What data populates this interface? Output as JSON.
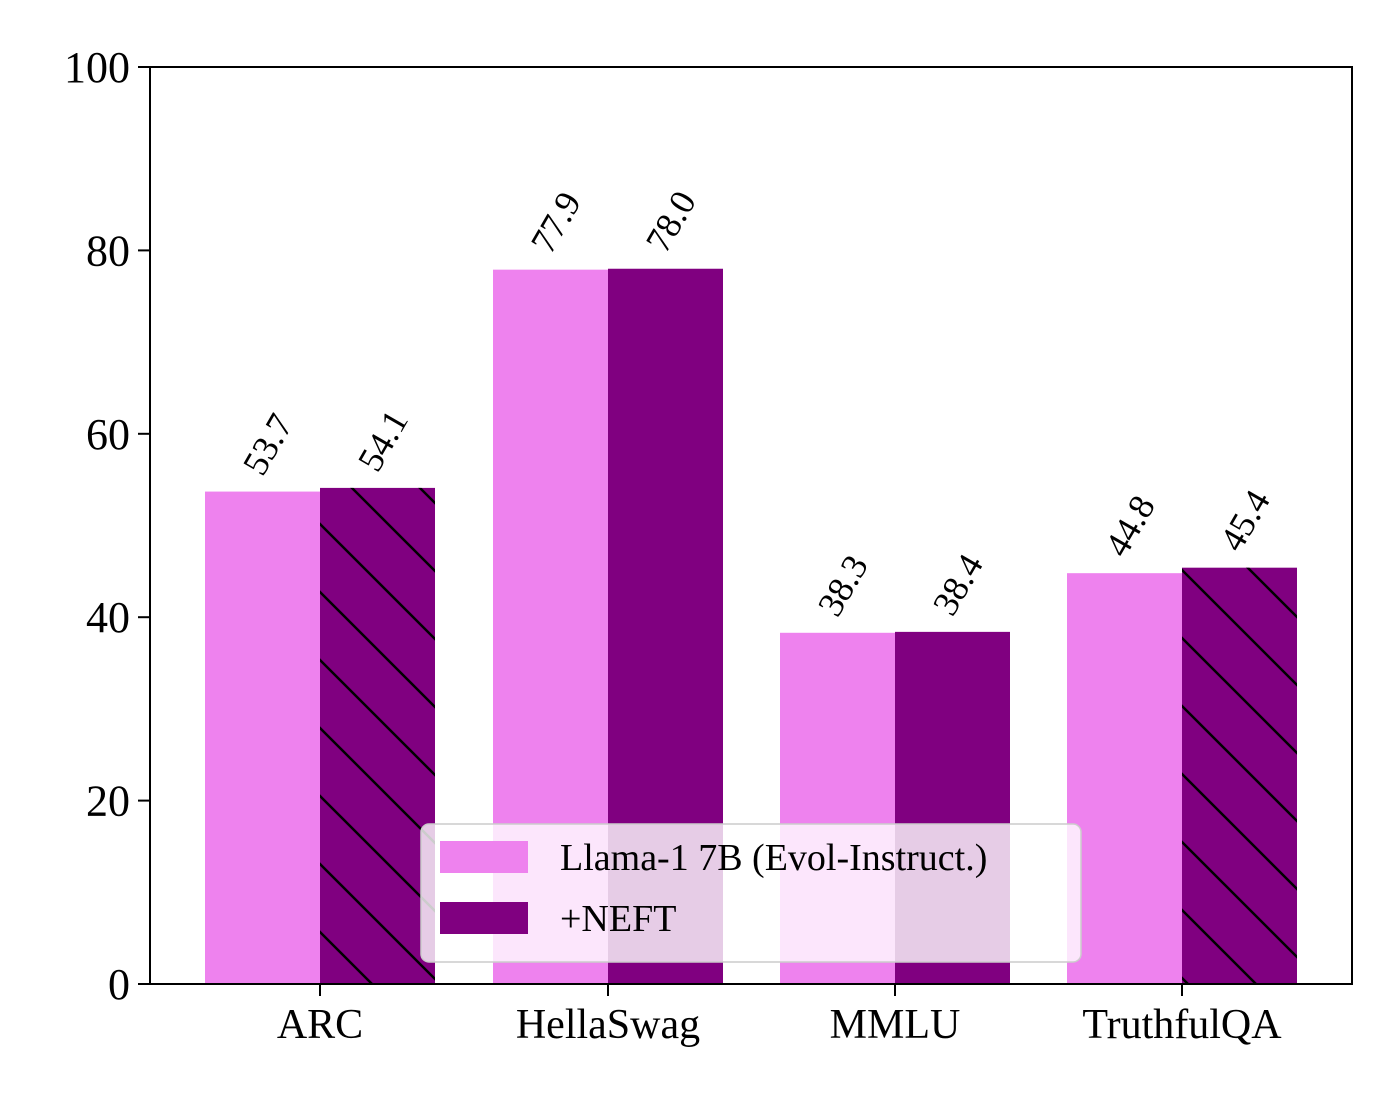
{
  "chart_data": {
    "type": "bar",
    "categories": [
      "ARC",
      "HellaSwag",
      "MMLU",
      "TruthfulQA"
    ],
    "series": [
      {
        "name": "Llama-1 7B (Evol-Instruct.)",
        "values": [
          53.7,
          77.9,
          38.3,
          44.8
        ],
        "labels": [
          "53.7",
          "77.9",
          "38.3",
          "44.8"
        ],
        "color": "#ee82ee"
      },
      {
        "name": "+NEFT",
        "values": [
          54.1,
          78.0,
          38.4,
          45.4
        ],
        "labels": [
          "54.1",
          "78.0",
          "38.4",
          "45.4"
        ],
        "color": "#800080",
        "hatched": [
          true,
          false,
          false,
          true
        ]
      }
    ],
    "yticks": [
      "0",
      "20",
      "40",
      "60",
      "80",
      "100"
    ],
    "ylim": [
      0,
      100
    ],
    "title": "",
    "xlabel": "",
    "ylabel": "",
    "legend_position": "lower-center",
    "grid": false
  }
}
